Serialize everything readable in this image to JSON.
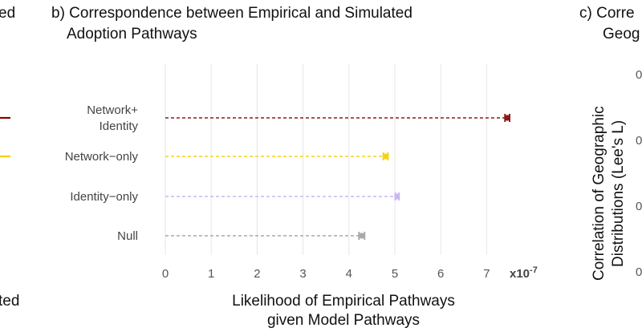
{
  "left_fragments": {
    "top": "ed",
    "bottom": "ted",
    "line_colors": [
      "#8b0000",
      "#f5d000"
    ]
  },
  "panel_b": {
    "title_line1": "b) Correspondence between Empirical and Simulated",
    "title_line2": "Adoption Pathways",
    "xlabel_line1": "Likelihood of Empirical Pathways",
    "xlabel_line2": "given Model Pathways",
    "multiplier_base": "x10",
    "multiplier_exp": "-7"
  },
  "panel_c": {
    "title_line1": "c) Corre",
    "title_line2": "Geog",
    "ylabel_line1": "Correlation of Geographic",
    "ylabel_line2": "Distributions (Lee's L)",
    "tick_fragments": [
      "0",
      "0",
      "0",
      "0"
    ]
  },
  "chart_data": {
    "type": "dot-errorbar",
    "title": "b) Correspondence between Empirical and Simulated Adoption Pathways",
    "xlabel": "Likelihood of Empirical Pathways given Model Pathways",
    "x_unit_multiplier": "x10-7",
    "xlim": [
      0,
      7.4
    ],
    "x_ticks": [
      0,
      1,
      2,
      3,
      4,
      5,
      6,
      7
    ],
    "grid": "vertical",
    "categories": [
      {
        "label_lines": [
          "Network+",
          "Identity"
        ],
        "value": 7.45,
        "err": 0.05,
        "color": "#8b1a1a"
      },
      {
        "label_lines": [
          "Network−only"
        ],
        "value": 4.8,
        "err": 0.05,
        "color": "#f5d21a"
      },
      {
        "label_lines": [
          "Identity−only"
        ],
        "value": 5.05,
        "err": 0.04,
        "color": "#c9b8f0"
      },
      {
        "label_lines": [
          "Null"
        ],
        "value": 4.28,
        "err": 0.06,
        "color": "#a8a8a8"
      }
    ]
  }
}
